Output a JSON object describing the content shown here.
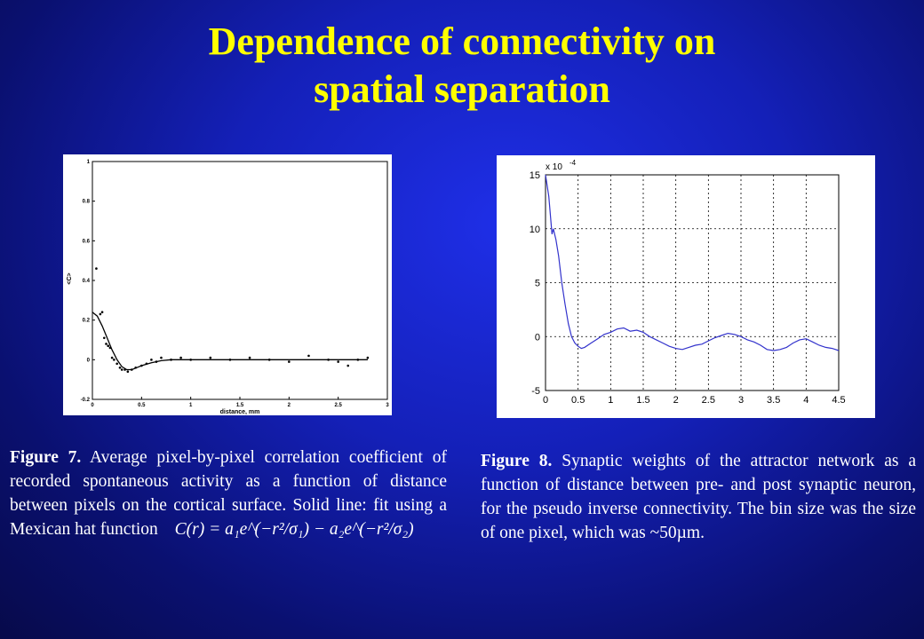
{
  "title": {
    "line1": "Dependence of connectivity on",
    "line2": "spatial separation"
  },
  "chart_data": [
    {
      "type": "scatter",
      "xlabel": "distance, mm",
      "ylabel": "<C>",
      "xlim": [
        0,
        3
      ],
      "ylim": [
        -0.2,
        1
      ],
      "xticks": [
        "0",
        "0.5",
        "1",
        "1.5",
        "2",
        "2.5",
        "3"
      ],
      "yticks": [
        "-0.2",
        "0",
        "0.2",
        "0.4",
        "0.6",
        "0.8",
        "1"
      ],
      "grid": false,
      "series": [
        {
          "kind": "points",
          "x": [
            0.04,
            0.08,
            0.1,
            0.12,
            0.14,
            0.16,
            0.18,
            0.2,
            0.22,
            0.25,
            0.28,
            0.3,
            0.33,
            0.36,
            0.4,
            0.44,
            0.5,
            0.55,
            0.6,
            0.65,
            0.7,
            0.8,
            0.9,
            1.0,
            1.2,
            1.4,
            1.6,
            1.8,
            2.0,
            2.2,
            2.4,
            2.5,
            2.6,
            2.7,
            2.8
          ],
          "y": [
            0.46,
            0.23,
            0.24,
            0.11,
            0.08,
            0.07,
            0.06,
            0.01,
            0.0,
            -0.02,
            -0.04,
            -0.05,
            -0.05,
            -0.06,
            -0.05,
            -0.04,
            -0.03,
            -0.02,
            0.0,
            -0.01,
            0.01,
            0.0,
            0.01,
            0.0,
            0.01,
            0.0,
            0.01,
            0.0,
            -0.01,
            0.02,
            0.0,
            -0.01,
            -0.03,
            0.0,
            0.01
          ]
        },
        {
          "kind": "fit-line",
          "x": [
            0.0,
            0.05,
            0.1,
            0.15,
            0.2,
            0.25,
            0.3,
            0.35,
            0.4,
            0.45,
            0.5,
            0.6,
            0.7,
            0.8,
            1.0,
            1.5,
            2.0,
            2.5,
            2.8
          ],
          "y": [
            0.24,
            0.22,
            0.17,
            0.11,
            0.05,
            0.0,
            -0.035,
            -0.05,
            -0.05,
            -0.04,
            -0.03,
            -0.015,
            -0.005,
            0.0,
            0.0,
            0.0,
            0.0,
            0.0,
            0.0
          ]
        }
      ]
    },
    {
      "type": "line",
      "axis_multiplier": "x 10",
      "axis_exponent": "-4",
      "xlim": [
        0,
        4.5
      ],
      "ylim": [
        -5,
        15
      ],
      "xticks": [
        "0",
        "0.5",
        "1",
        "1.5",
        "2",
        "2.5",
        "3",
        "3.5",
        "4",
        "4.5"
      ],
      "yticks": [
        "-5",
        "0",
        "5",
        "10",
        "15"
      ],
      "grid": true,
      "color": "#3333cc",
      "x": [
        0.0,
        0.05,
        0.1,
        0.12,
        0.16,
        0.2,
        0.25,
        0.3,
        0.35,
        0.4,
        0.45,
        0.5,
        0.55,
        0.6,
        0.7,
        0.8,
        0.9,
        1.0,
        1.1,
        1.2,
        1.3,
        1.4,
        1.5,
        1.6,
        1.7,
        1.8,
        1.9,
        2.0,
        2.1,
        2.2,
        2.3,
        2.4,
        2.5,
        2.6,
        2.7,
        2.8,
        2.9,
        3.0,
        3.1,
        3.2,
        3.3,
        3.4,
        3.5,
        3.6,
        3.7,
        3.8,
        3.9,
        4.0,
        4.1,
        4.2,
        4.3,
        4.4,
        4.5
      ],
      "y": [
        15.0,
        13.0,
        9.5,
        10.0,
        9.0,
        7.5,
        5.0,
        3.0,
        1.2,
        0.0,
        -0.6,
        -0.9,
        -1.1,
        -1.0,
        -0.6,
        -0.2,
        0.2,
        0.4,
        0.7,
        0.8,
        0.5,
        0.6,
        0.4,
        0.0,
        -0.3,
        -0.6,
        -0.9,
        -1.1,
        -1.2,
        -1.0,
        -0.8,
        -0.7,
        -0.4,
        -0.1,
        0.1,
        0.3,
        0.2,
        0.0,
        -0.3,
        -0.5,
        -0.8,
        -1.2,
        -1.3,
        -1.2,
        -1.0,
        -0.6,
        -0.3,
        -0.2,
        -0.5,
        -0.8,
        -1.0,
        -1.1,
        -1.3
      ]
    }
  ],
  "fig7": {
    "label": "Figure 7.",
    "text": "Average pixel-by-pixel correlation coefficient of recorded spontaneous activity as a function of distance between pixels on the cortical surface. Solid line: fit using a Mexican hat function",
    "formula": "C(r) = a₁e^(−r²/σ₁) − a₂e^(−r²/σ₂)"
  },
  "fig8": {
    "label": "Figure 8.",
    "text": "Synaptic weights of the attractor network as a function of distance between pre- and post synaptic neuron, for the pseudo inverse connectivity. The bin size was the size of one pixel, which was ~50µm."
  }
}
